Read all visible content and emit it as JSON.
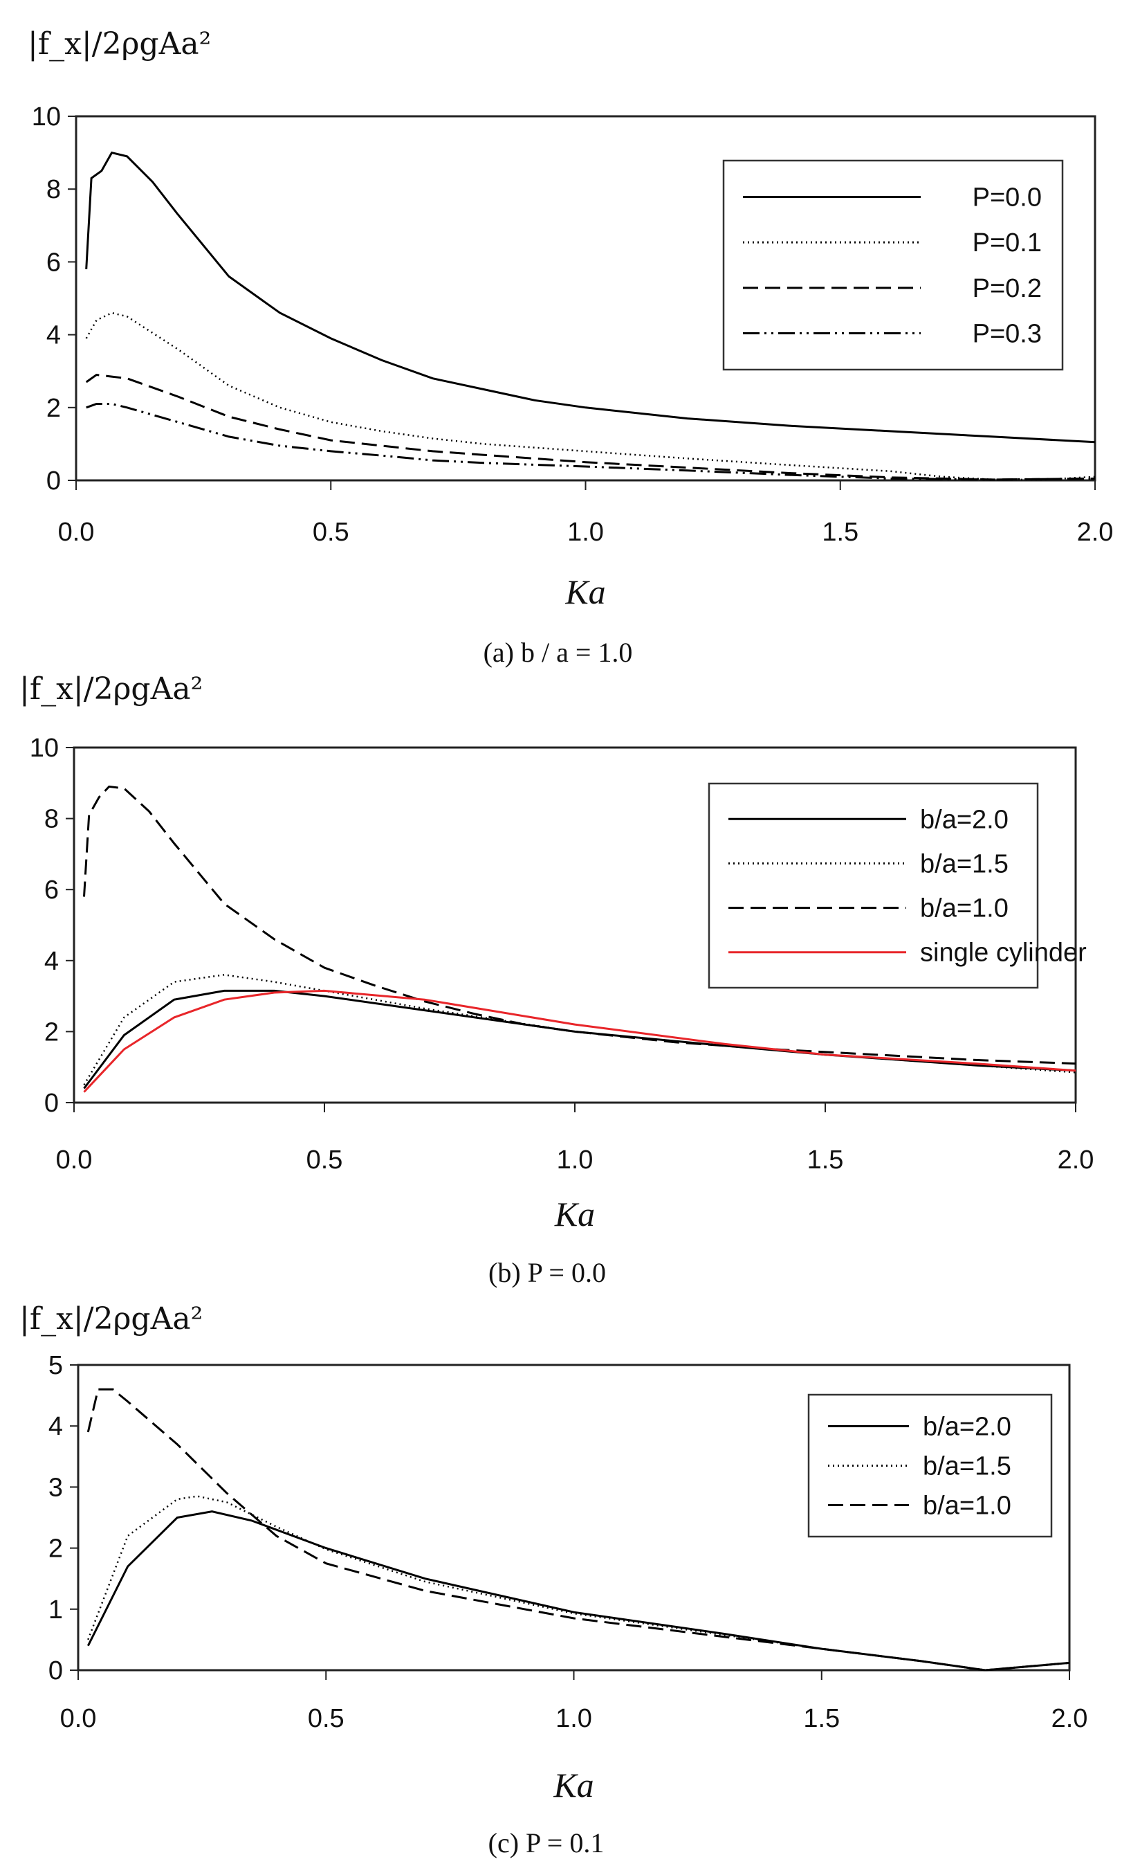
{
  "chart_data": [
    {
      "type": "line",
      "ylabel": "|f_x|/2ρgAa²",
      "xlabel": "Ka",
      "caption": "(a)  b / a = 1.0",
      "xlim": [
        0,
        2
      ],
      "ylim": [
        0,
        10
      ],
      "xticks": [
        "0.0",
        "0.5",
        "1.0",
        "1.5",
        "2.0"
      ],
      "yticks": [
        "0",
        "2",
        "4",
        "6",
        "8",
        "10"
      ],
      "grid": false,
      "legend": "top-right",
      "series": [
        {
          "name": "P=0.0",
          "style": "solid",
          "color": "#000000",
          "x": [
            0.02,
            0.03,
            0.05,
            0.07,
            0.1,
            0.15,
            0.2,
            0.3,
            0.4,
            0.5,
            0.6,
            0.7,
            0.8,
            0.9,
            1.0,
            1.2,
            1.4,
            1.6,
            1.8,
            2.0
          ],
          "y": [
            5.8,
            8.3,
            8.5,
            9.0,
            8.9,
            8.2,
            7.3,
            5.6,
            4.6,
            3.9,
            3.3,
            2.8,
            2.5,
            2.2,
            2.0,
            1.7,
            1.5,
            1.35,
            1.2,
            1.05
          ]
        },
        {
          "name": "P=0.1",
          "style": "dotted",
          "color": "#000000",
          "x": [
            0.02,
            0.04,
            0.07,
            0.1,
            0.2,
            0.3,
            0.4,
            0.5,
            0.6,
            0.7,
            0.8,
            1.0,
            1.2,
            1.4,
            1.6,
            1.7,
            1.8,
            1.9,
            2.0
          ],
          "y": [
            3.9,
            4.4,
            4.6,
            4.5,
            3.6,
            2.6,
            2.0,
            1.6,
            1.35,
            1.15,
            1.0,
            0.8,
            0.6,
            0.42,
            0.25,
            0.1,
            0.02,
            0.02,
            0.1
          ]
        },
        {
          "name": "P=0.2",
          "style": "dashed",
          "color": "#000000",
          "x": [
            0.02,
            0.04,
            0.07,
            0.1,
            0.2,
            0.3,
            0.4,
            0.5,
            0.6,
            0.7,
            0.8,
            1.0,
            1.2,
            1.4,
            1.6,
            1.8,
            2.0
          ],
          "y": [
            2.7,
            2.9,
            2.85,
            2.8,
            2.3,
            1.75,
            1.4,
            1.1,
            0.95,
            0.8,
            0.7,
            0.5,
            0.35,
            0.2,
            0.08,
            0.02,
            0.05
          ]
        },
        {
          "name": "P=0.3",
          "style": "dashdotdot",
          "color": "#000000",
          "x": [
            0.02,
            0.04,
            0.07,
            0.1,
            0.2,
            0.3,
            0.4,
            0.5,
            0.6,
            0.7,
            0.8,
            1.0,
            1.2,
            1.4,
            1.6,
            1.8,
            2.0
          ],
          "y": [
            2.0,
            2.1,
            2.1,
            2.0,
            1.6,
            1.2,
            0.95,
            0.8,
            0.68,
            0.55,
            0.48,
            0.38,
            0.27,
            0.15,
            0.05,
            0.02,
            0.05
          ]
        }
      ]
    },
    {
      "type": "line",
      "ylabel": "|f_x|/2ρgAa²",
      "xlabel": "Ka",
      "caption": "(b)  P = 0.0",
      "xlim": [
        0,
        2
      ],
      "ylim": [
        0,
        10
      ],
      "xticks": [
        "0.0",
        "0.5",
        "1.0",
        "1.5",
        "2.0"
      ],
      "yticks": [
        "0",
        "2",
        "4",
        "6",
        "8",
        "10"
      ],
      "grid": false,
      "legend": "top-right",
      "series": [
        {
          "name": "b/a=2.0",
          "style": "solid",
          "color": "#000000",
          "x": [
            0.02,
            0.1,
            0.2,
            0.3,
            0.4,
            0.5,
            0.7,
            1.0,
            1.3,
            1.5,
            1.8,
            2.0
          ],
          "y": [
            0.4,
            1.9,
            2.9,
            3.15,
            3.15,
            3.0,
            2.6,
            2.0,
            1.6,
            1.35,
            1.05,
            0.9
          ]
        },
        {
          "name": "b/a=1.5",
          "style": "dotted",
          "color": "#000000",
          "x": [
            0.02,
            0.1,
            0.2,
            0.3,
            0.4,
            0.5,
            0.7,
            1.0,
            1.3,
            1.5,
            1.8,
            2.0
          ],
          "y": [
            0.5,
            2.4,
            3.4,
            3.6,
            3.4,
            3.15,
            2.65,
            2.0,
            1.6,
            1.35,
            1.05,
            0.85
          ]
        },
        {
          "name": "b/a=1.0",
          "style": "dashed",
          "color": "#000000",
          "x": [
            0.02,
            0.03,
            0.05,
            0.07,
            0.1,
            0.15,
            0.2,
            0.3,
            0.4,
            0.5,
            0.6,
            0.7,
            0.8,
            0.9,
            1.0,
            1.2,
            1.4,
            1.6,
            1.8,
            2.0
          ],
          "y": [
            5.8,
            8.1,
            8.6,
            8.9,
            8.85,
            8.2,
            7.3,
            5.6,
            4.6,
            3.8,
            3.3,
            2.85,
            2.5,
            2.2,
            2.0,
            1.7,
            1.5,
            1.35,
            1.2,
            1.1
          ]
        },
        {
          "name": "single cylinder",
          "style": "solid",
          "color": "#e8262a",
          "x": [
            0.02,
            0.1,
            0.2,
            0.3,
            0.4,
            0.5,
            0.7,
            1.0,
            1.3,
            1.5,
            1.8,
            2.0
          ],
          "y": [
            0.3,
            1.5,
            2.4,
            2.9,
            3.1,
            3.15,
            2.9,
            2.2,
            1.65,
            1.35,
            1.1,
            0.9
          ]
        }
      ]
    },
    {
      "type": "line",
      "ylabel": "|f_x|/2ρgAa²",
      "xlabel": "Ka",
      "caption": "(c)  P = 0.1",
      "xlim": [
        0,
        2
      ],
      "ylim": [
        0,
        5
      ],
      "xticks": [
        "0.0",
        "0.5",
        "1.0",
        "1.5",
        "2.0"
      ],
      "yticks": [
        "0",
        "1",
        "2",
        "3",
        "4",
        "5"
      ],
      "grid": false,
      "legend": "top-right",
      "series": [
        {
          "name": "b/a=2.0",
          "style": "solid",
          "color": "#000000",
          "x": [
            0.02,
            0.1,
            0.2,
            0.27,
            0.35,
            0.5,
            0.7,
            1.0,
            1.3,
            1.5,
            1.7,
            1.83,
            1.9,
            2.0
          ],
          "y": [
            0.4,
            1.7,
            2.5,
            2.6,
            2.45,
            2.0,
            1.5,
            0.95,
            0.6,
            0.35,
            0.15,
            0.0,
            0.05,
            0.12
          ]
        },
        {
          "name": "b/a=1.5",
          "style": "dotted",
          "color": "#000000",
          "x": [
            0.02,
            0.1,
            0.2,
            0.24,
            0.3,
            0.4,
            0.5,
            0.7,
            1.0,
            1.3,
            1.5,
            1.7,
            1.83,
            1.9,
            2.0
          ],
          "y": [
            0.5,
            2.2,
            2.8,
            2.85,
            2.75,
            2.35,
            1.98,
            1.45,
            0.93,
            0.58,
            0.35,
            0.15,
            0.0,
            0.05,
            0.12
          ]
        },
        {
          "name": "b/a=1.0",
          "style": "dashed",
          "color": "#000000",
          "x": [
            0.02,
            0.04,
            0.07,
            0.1,
            0.2,
            0.3,
            0.4,
            0.5,
            0.7,
            1.0,
            1.3,
            1.5,
            1.7,
            1.83,
            1.9,
            2.0
          ],
          "y": [
            3.9,
            4.6,
            4.6,
            4.4,
            3.7,
            2.9,
            2.2,
            1.75,
            1.3,
            0.85,
            0.55,
            0.35,
            0.15,
            0.0,
            0.05,
            0.12
          ]
        }
      ]
    }
  ]
}
